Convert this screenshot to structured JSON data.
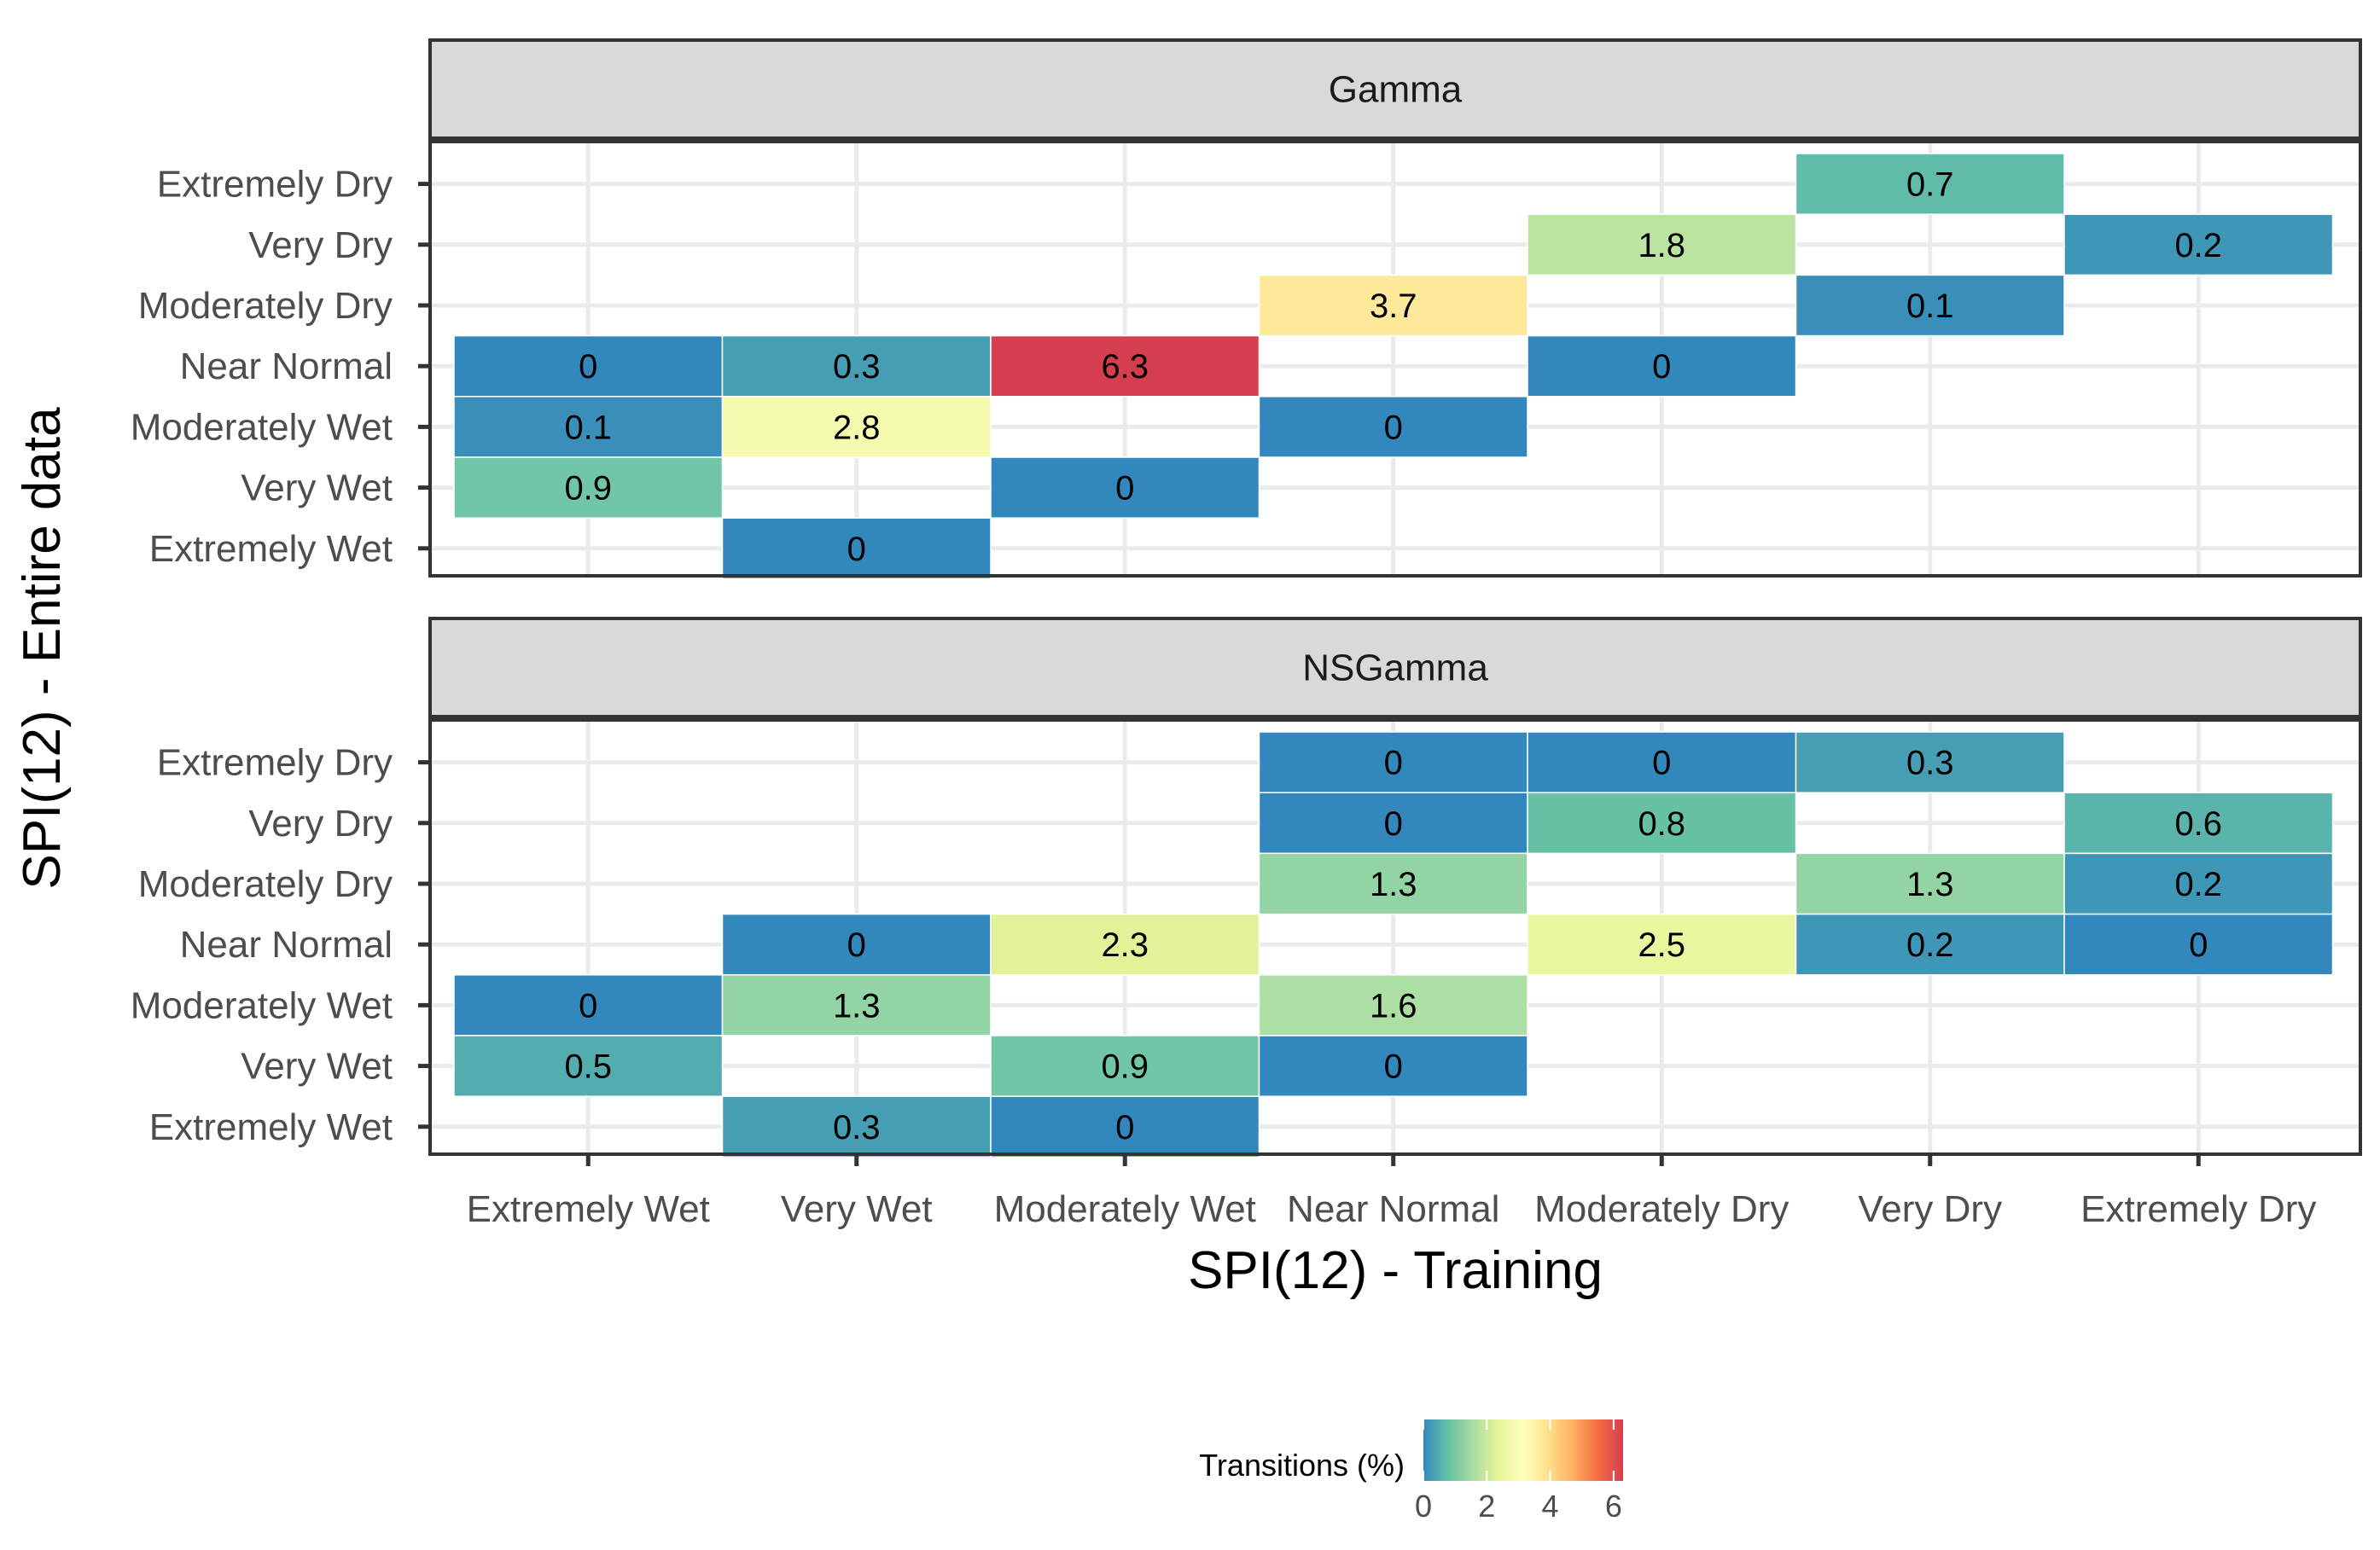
{
  "chart_data": {
    "type": "heatmap",
    "x_categories": [
      "Extremely Wet",
      "Very Wet",
      "Moderately Wet",
      "Near Normal",
      "Moderately Dry",
      "Very Dry",
      "Extremely Dry"
    ],
    "y_categories": [
      "Extremely Dry",
      "Very Dry",
      "Moderately Dry",
      "Near Normal",
      "Moderately Wet",
      "Very Wet",
      "Extremely Wet"
    ],
    "xlabel": "SPI(12) - Training",
    "ylabel": "SPI(12) - Entire data",
    "legend": {
      "title": "Transitions (%)",
      "ticks": [
        "0",
        "2",
        "4",
        "6"
      ],
      "range": [
        0,
        6.3
      ],
      "placement": "bottom",
      "colors": [
        "#3288bd",
        "#66c2a5",
        "#abdda4",
        "#e6f598",
        "#ffffbf",
        "#fee08b",
        "#fdae61",
        "#f46d43",
        "#d53e4f"
      ]
    },
    "panels": [
      {
        "title": "Gamma",
        "cells": [
          {
            "x": "Very Dry",
            "y": "Extremely Dry",
            "value": 0.7,
            "label": "0.7"
          },
          {
            "x": "Moderately Dry",
            "y": "Very Dry",
            "value": 1.8,
            "label": "1.8"
          },
          {
            "x": "Extremely Dry",
            "y": "Very Dry",
            "value": 0.2,
            "label": "0.2"
          },
          {
            "x": "Near Normal",
            "y": "Moderately Dry",
            "value": 3.7,
            "label": "3.7"
          },
          {
            "x": "Very Dry",
            "y": "Moderately Dry",
            "value": 0.1,
            "label": "0.1"
          },
          {
            "x": "Extremely Wet",
            "y": "Near Normal",
            "value": 0,
            "label": "0"
          },
          {
            "x": "Very Wet",
            "y": "Near Normal",
            "value": 0.3,
            "label": "0.3"
          },
          {
            "x": "Moderately Wet",
            "y": "Near Normal",
            "value": 6.3,
            "label": "6.3"
          },
          {
            "x": "Moderately Dry",
            "y": "Near Normal",
            "value": 0,
            "label": "0"
          },
          {
            "x": "Extremely Wet",
            "y": "Moderately Wet",
            "value": 0.1,
            "label": "0.1"
          },
          {
            "x": "Very Wet",
            "y": "Moderately Wet",
            "value": 2.8,
            "label": "2.8"
          },
          {
            "x": "Near Normal",
            "y": "Moderately Wet",
            "value": 0,
            "label": "0"
          },
          {
            "x": "Extremely Wet",
            "y": "Very Wet",
            "value": 0.9,
            "label": "0.9"
          },
          {
            "x": "Moderately Wet",
            "y": "Very Wet",
            "value": 0,
            "label": "0"
          },
          {
            "x": "Very Wet",
            "y": "Extremely Wet",
            "value": 0,
            "label": "0"
          }
        ]
      },
      {
        "title": "NSGamma",
        "cells": [
          {
            "x": "Near Normal",
            "y": "Extremely Dry",
            "value": 0,
            "label": "0"
          },
          {
            "x": "Moderately Dry",
            "y": "Extremely Dry",
            "value": 0,
            "label": "0"
          },
          {
            "x": "Very Dry",
            "y": "Extremely Dry",
            "value": 0.3,
            "label": "0.3"
          },
          {
            "x": "Near Normal",
            "y": "Very Dry",
            "value": 0,
            "label": "0"
          },
          {
            "x": "Moderately Dry",
            "y": "Very Dry",
            "value": 0.8,
            "label": "0.8"
          },
          {
            "x": "Extremely Dry",
            "y": "Very Dry",
            "value": 0.6,
            "label": "0.6"
          },
          {
            "x": "Near Normal",
            "y": "Moderately Dry",
            "value": 1.3,
            "label": "1.3"
          },
          {
            "x": "Very Dry",
            "y": "Moderately Dry",
            "value": 1.3,
            "label": "1.3"
          },
          {
            "x": "Extremely Dry",
            "y": "Moderately Dry",
            "value": 0.2,
            "label": "0.2"
          },
          {
            "x": "Very Wet",
            "y": "Near Normal",
            "value": 0,
            "label": "0"
          },
          {
            "x": "Moderately Wet",
            "y": "Near Normal",
            "value": 2.3,
            "label": "2.3"
          },
          {
            "x": "Moderately Dry",
            "y": "Near Normal",
            "value": 2.5,
            "label": "2.5"
          },
          {
            "x": "Very Dry",
            "y": "Near Normal",
            "value": 0.2,
            "label": "0.2"
          },
          {
            "x": "Extremely Dry",
            "y": "Near Normal",
            "value": 0,
            "label": "0"
          },
          {
            "x": "Extremely Wet",
            "y": "Moderately Wet",
            "value": 0,
            "label": "0"
          },
          {
            "x": "Very Wet",
            "y": "Moderately Wet",
            "value": 1.3,
            "label": "1.3"
          },
          {
            "x": "Near Normal",
            "y": "Moderately Wet",
            "value": 1.6,
            "label": "1.6"
          },
          {
            "x": "Extremely Wet",
            "y": "Very Wet",
            "value": 0.5,
            "label": "0.5"
          },
          {
            "x": "Moderately Wet",
            "y": "Very Wet",
            "value": 0.9,
            "label": "0.9"
          },
          {
            "x": "Near Normal",
            "y": "Very Wet",
            "value": 0,
            "label": "0"
          },
          {
            "x": "Very Wet",
            "y": "Extremely Wet",
            "value": 0.3,
            "label": "0.3"
          },
          {
            "x": "Moderately Wet",
            "y": "Extremely Wet",
            "value": 0,
            "label": "0"
          }
        ]
      }
    ]
  }
}
